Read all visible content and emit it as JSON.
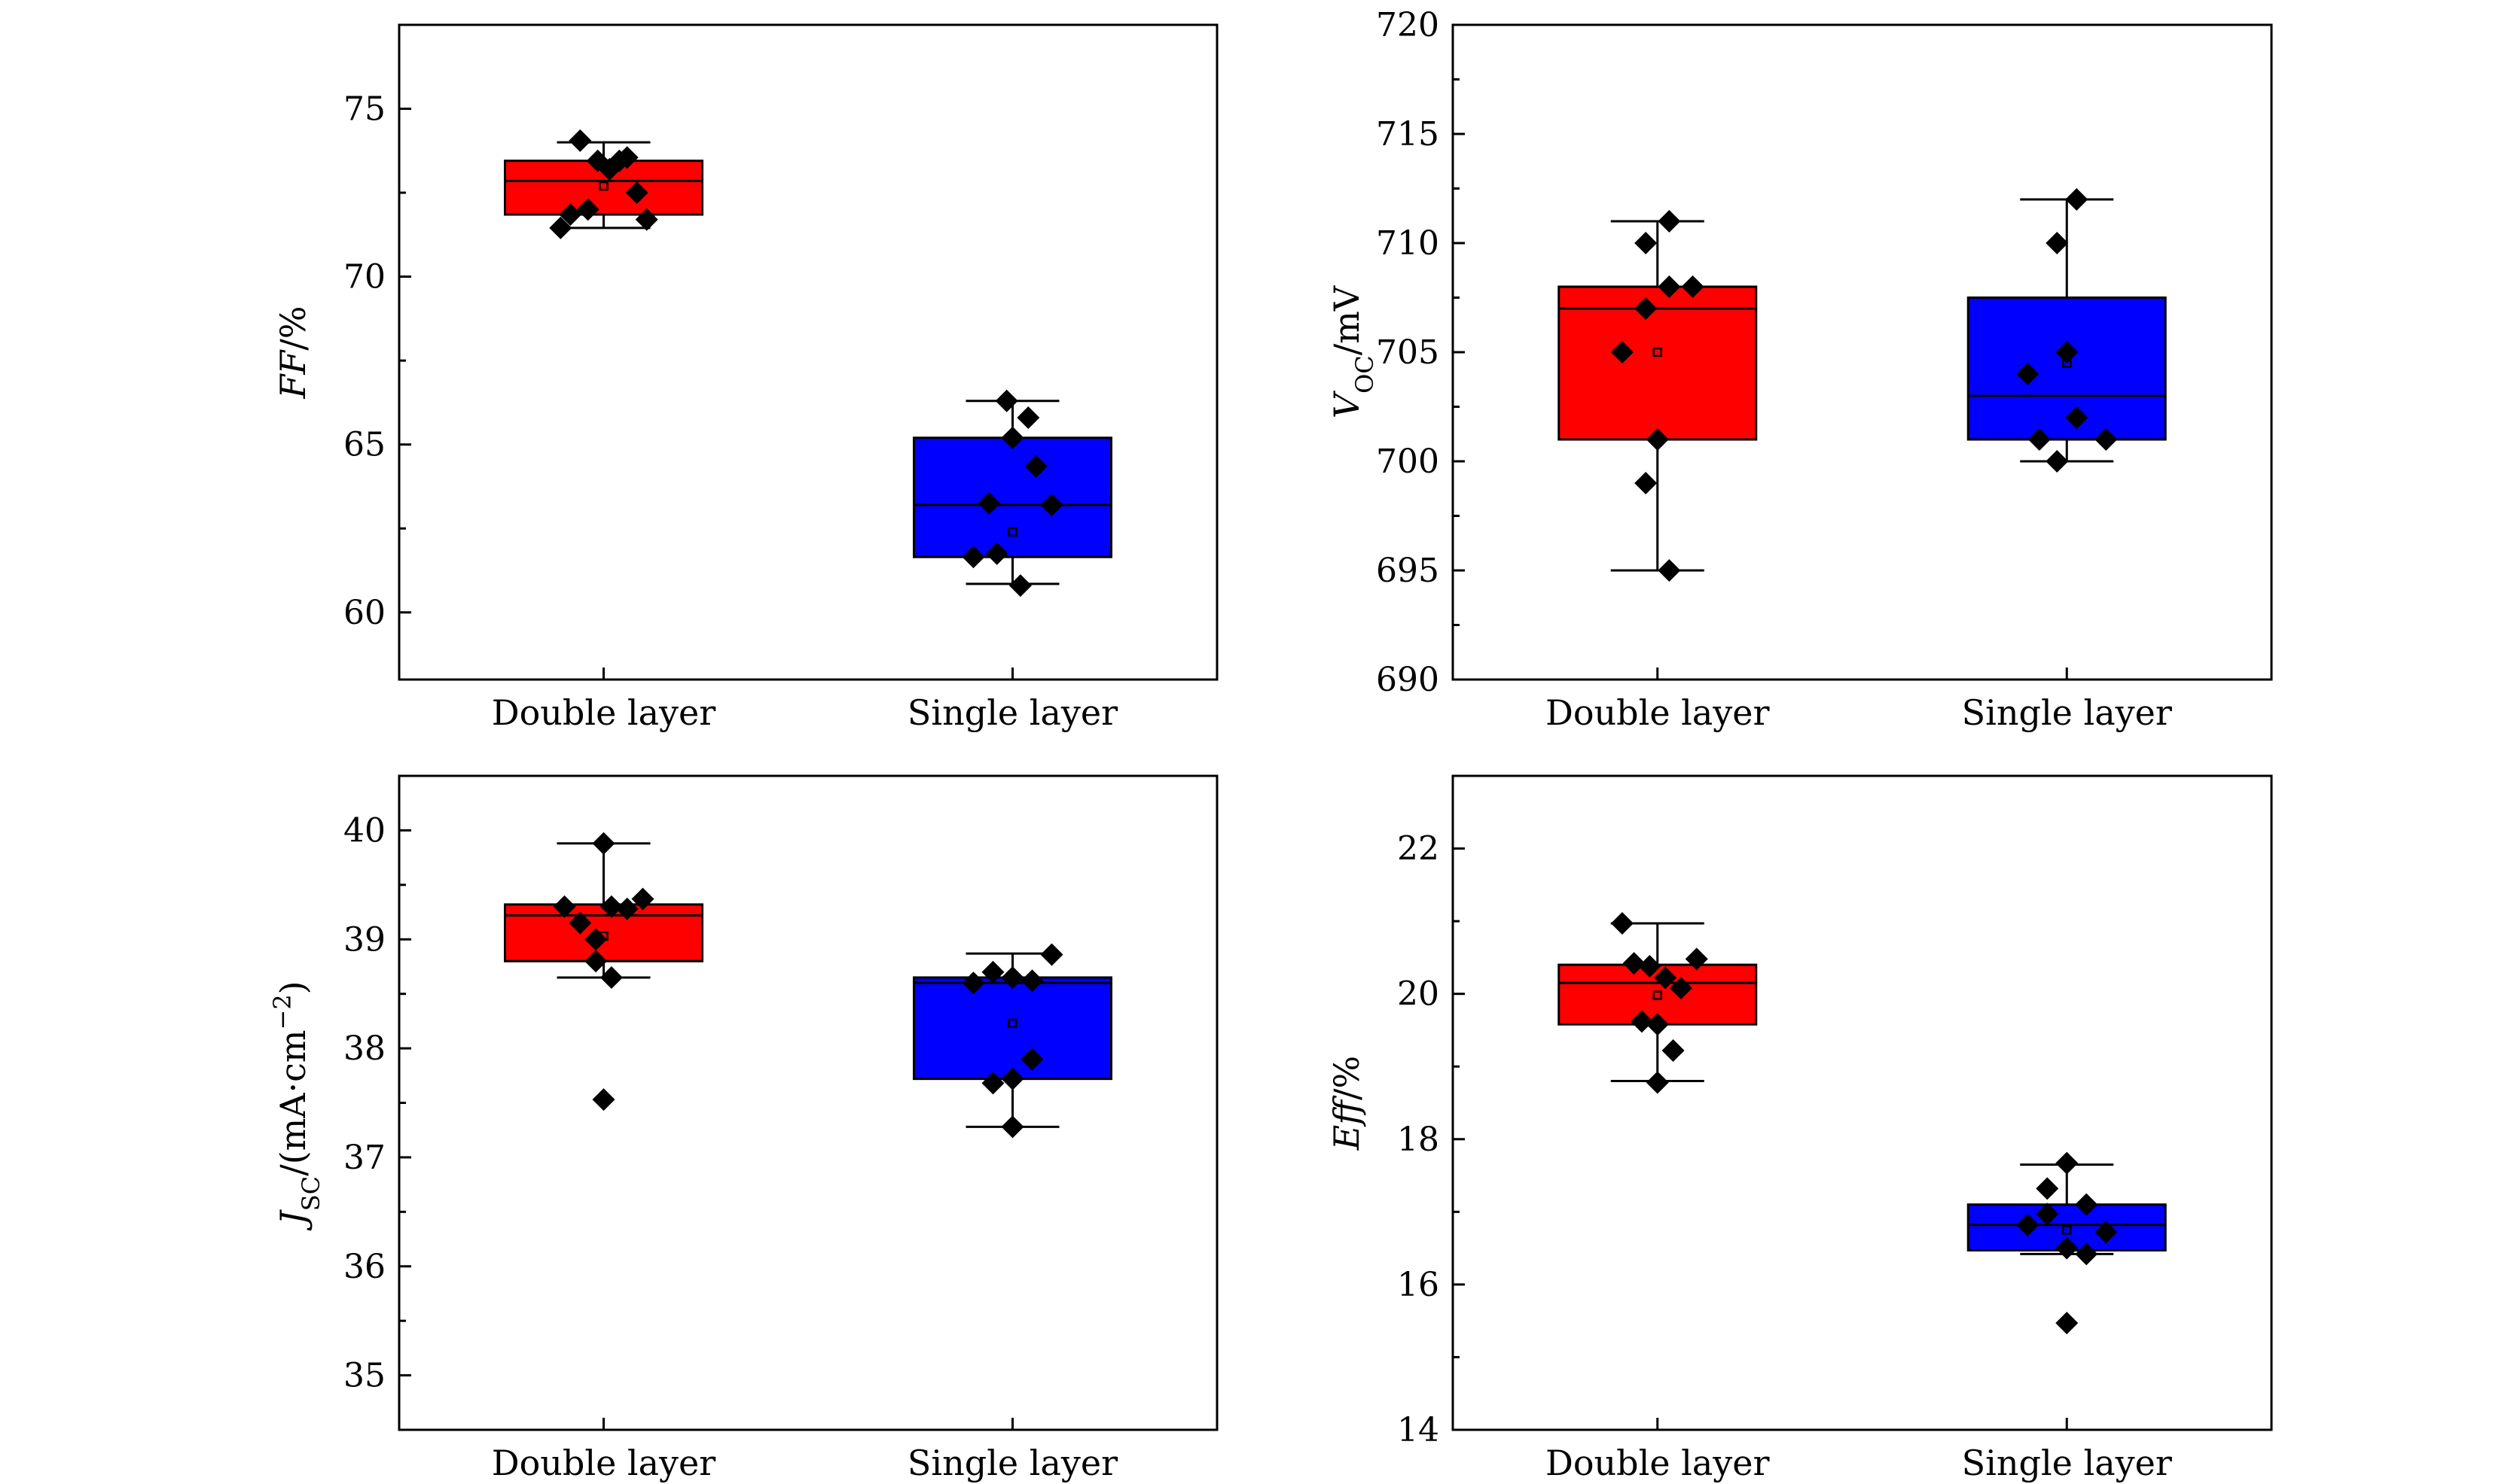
{
  "colors": {
    "double": "#ff0000",
    "single": "#0000ff",
    "marker": "#000000",
    "frame": "#000000"
  },
  "chart_data": [
    {
      "type": "box",
      "id": "ff",
      "ylabel": "FF/%",
      "ylabel_parts": [
        {
          "text": "FF",
          "style": "italic"
        },
        {
          "text": "/%",
          "style": "normal"
        }
      ],
      "ylim": [
        58,
        77.5
      ],
      "yticks": [
        60,
        65,
        70,
        75
      ],
      "ytick_labels": [
        "60",
        "65",
        "70",
        "75"
      ],
      "categories": [
        "Double layer",
        "Single layer"
      ],
      "series": [
        {
          "name": "Double layer",
          "color": "#ff0000",
          "q1": 71.85,
          "median": 72.85,
          "q3": 73.45,
          "whisker_low": 71.45,
          "whisker_high": 74.0,
          "mean": 72.7,
          "points": [
            [
              -0.22,
              71.45
            ],
            [
              -0.17,
              71.85
            ],
            [
              -0.12,
              74.05
            ],
            [
              -0.08,
              72.0
            ],
            [
              -0.03,
              73.45
            ],
            [
              0.03,
              73.2
            ],
            [
              0.08,
              73.45
            ],
            [
              0.12,
              73.55
            ],
            [
              0.17,
              72.5
            ],
            [
              0.22,
              71.7
            ]
          ]
        },
        {
          "name": "Single layer",
          "color": "#0000ff",
          "q1": 61.65,
          "median": 63.2,
          "q3": 65.2,
          "whisker_low": 60.85,
          "whisker_high": 66.3,
          "mean": 62.4,
          "points": [
            [
              -0.2,
              61.65
            ],
            [
              -0.12,
              63.25
            ],
            [
              -0.08,
              61.75
            ],
            [
              -0.03,
              66.3
            ],
            [
              0.0,
              65.2
            ],
            [
              0.04,
              60.8
            ],
            [
              0.08,
              65.8
            ],
            [
              0.12,
              64.35
            ],
            [
              0.2,
              63.2
            ]
          ]
        }
      ]
    },
    {
      "type": "box",
      "id": "voc",
      "ylabel": "VOC/mV",
      "ylabel_parts": [
        {
          "text": "V",
          "style": "italic"
        },
        {
          "text": "OC",
          "style": "sub"
        },
        {
          "text": "/mV",
          "style": "normal"
        }
      ],
      "ylim": [
        690,
        720
      ],
      "yticks": [
        690,
        695,
        700,
        705,
        710,
        715,
        720
      ],
      "ytick_labels": [
        "690",
        "695",
        "700",
        "705",
        "710",
        "715",
        "720"
      ],
      "categories": [
        "Double layer",
        "Single layer"
      ],
      "series": [
        {
          "name": "Double layer",
          "color": "#ff0000",
          "q1": 701,
          "median": 707,
          "q3": 708,
          "whisker_low": 695,
          "whisker_high": 711,
          "mean": 705,
          "points": [
            [
              -0.18,
              705
            ],
            [
              -0.06,
              710
            ],
            [
              -0.06,
              707
            ],
            [
              -0.06,
              699
            ],
            [
              0.0,
              701
            ],
            [
              0.06,
              711
            ],
            [
              0.06,
              708
            ],
            [
              0.18,
              708
            ],
            [
              0.06,
              695
            ]
          ]
        },
        {
          "name": "Single layer",
          "color": "#0000ff",
          "q1": 701,
          "median": 703,
          "q3": 707.5,
          "whisker_low": 700,
          "whisker_high": 712,
          "mean": 704.5,
          "points": [
            [
              -0.2,
              704
            ],
            [
              -0.14,
              701
            ],
            [
              -0.05,
              710
            ],
            [
              -0.05,
              700
            ],
            [
              0.0,
              705
            ],
            [
              0.05,
              712
            ],
            [
              0.05,
              702
            ],
            [
              0.2,
              701
            ]
          ]
        }
      ]
    },
    {
      "type": "box",
      "id": "jsc",
      "ylabel": "JSC/(mA·cm−2)",
      "ylabel_parts": [
        {
          "text": "J",
          "style": "italic"
        },
        {
          "text": "SC",
          "style": "sub"
        },
        {
          "text": "/(mA·cm",
          "style": "normal"
        },
        {
          "text": "−2",
          "style": "sup"
        },
        {
          "text": ")",
          "style": "normal"
        }
      ],
      "ylim": [
        34.5,
        40.5
      ],
      "yticks": [
        35,
        36,
        37,
        38,
        39,
        40
      ],
      "ytick_labels": [
        "35",
        "36",
        "37",
        "38",
        "39",
        "40"
      ],
      "categories": [
        "Double layer",
        "Single layer"
      ],
      "series": [
        {
          "name": "Double layer",
          "color": "#ff0000",
          "q1": 38.8,
          "median": 39.22,
          "q3": 39.32,
          "whisker_low": 38.65,
          "whisker_high": 39.88,
          "mean": 39.03,
          "points": [
            [
              -0.2,
              39.3
            ],
            [
              -0.12,
              39.15
            ],
            [
              -0.04,
              39.0
            ],
            [
              -0.04,
              38.8
            ],
            [
              0.0,
              39.88
            ],
            [
              0.0,
              37.53
            ],
            [
              0.04,
              39.3
            ],
            [
              0.04,
              38.65
            ],
            [
              0.12,
              39.28
            ],
            [
              0.2,
              39.37
            ]
          ]
        },
        {
          "name": "Single layer",
          "color": "#0000ff",
          "q1": 37.72,
          "median": 38.6,
          "q3": 38.65,
          "whisker_low": 37.28,
          "whisker_high": 38.87,
          "mean": 38.23,
          "points": [
            [
              -0.2,
              38.6
            ],
            [
              -0.1,
              38.7
            ],
            [
              -0.1,
              37.68
            ],
            [
              0.0,
              38.65
            ],
            [
              0.0,
              37.72
            ],
            [
              0.0,
              37.28
            ],
            [
              0.1,
              38.62
            ],
            [
              0.1,
              37.9
            ],
            [
              0.2,
              38.86
            ]
          ]
        }
      ]
    },
    {
      "type": "box",
      "id": "eff",
      "ylabel": "Eff/%",
      "ylabel_parts": [
        {
          "text": "Eff",
          "style": "italic"
        },
        {
          "text": "/%",
          "style": "normal"
        }
      ],
      "ylim": [
        14,
        23
      ],
      "yticks": [
        14,
        16,
        18,
        20,
        22
      ],
      "ytick_labels": [
        "14",
        "16",
        "18",
        "20",
        "22"
      ],
      "categories": [
        "Double layer",
        "Single layer"
      ],
      "series": [
        {
          "name": "Double layer",
          "color": "#ff0000",
          "q1": 19.58,
          "median": 20.15,
          "q3": 20.4,
          "whisker_low": 18.8,
          "whisker_high": 20.97,
          "mean": 19.98,
          "points": [
            [
              -0.18,
              20.97
            ],
            [
              -0.12,
              20.42
            ],
            [
              -0.08,
              19.62
            ],
            [
              -0.04,
              20.38
            ],
            [
              0.0,
              19.58
            ],
            [
              0.0,
              18.78
            ],
            [
              0.04,
              20.22
            ],
            [
              0.08,
              19.22
            ],
            [
              0.12,
              20.08
            ],
            [
              0.2,
              20.48
            ]
          ]
        },
        {
          "name": "Single layer",
          "color": "#0000ff",
          "q1": 16.47,
          "median": 16.82,
          "q3": 17.1,
          "whisker_low": 16.42,
          "whisker_high": 17.65,
          "mean": 16.75,
          "points": [
            [
              -0.2,
              16.82
            ],
            [
              -0.1,
              17.32
            ],
            [
              -0.1,
              16.97
            ],
            [
              0.0,
              16.5
            ],
            [
              0.0,
              17.67
            ],
            [
              0.0,
              15.47
            ],
            [
              0.1,
              17.1
            ],
            [
              0.1,
              16.42
            ],
            [
              0.2,
              16.72
            ]
          ]
        }
      ]
    }
  ]
}
